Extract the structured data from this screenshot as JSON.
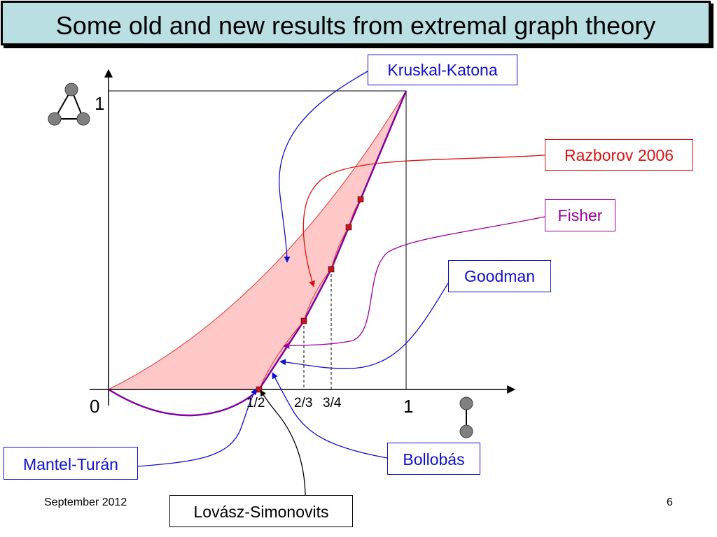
{
  "slide": {
    "title": "Some old and new results from extremal graph theory",
    "footer_date": "September 2012",
    "page_number": "6"
  },
  "axes": {
    "x_origin": "0",
    "x_max": "1",
    "y_max": "1",
    "tick_half": "1/2",
    "tick_two_thirds": "2/3",
    "tick_three_quarters": "3/4"
  },
  "labels": {
    "kruskal_katona": "Kruskal-Katona",
    "razborov": "Razborov 2006",
    "fisher": "Fisher",
    "goodman": "Goodman",
    "mantel_turan": "Mantel-Turán",
    "bollobas": "Bollobás",
    "lovasz_simonovits": "Lovász-Simonovits"
  },
  "colors": {
    "title_bg": "#b9dfe3",
    "region_fill": "#ffc8c8",
    "region_stroke": "#e03030",
    "razborov": "#e01010",
    "fisher": "#990099",
    "goodman_blue": "#1010d0",
    "lower_curve": "#8000a0",
    "marker": "#d0101a"
  },
  "icons": {
    "triangle": "triangle-graph-icon",
    "edge": "edge-graph-icon"
  }
}
